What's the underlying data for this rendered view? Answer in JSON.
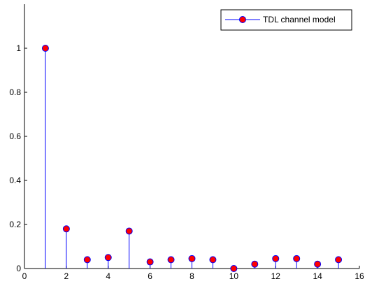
{
  "chart_data": {
    "type": "stem",
    "series": [
      {
        "name": "TDL channel model",
        "x": [
          1,
          2,
          3,
          4,
          5,
          6,
          7,
          8,
          9,
          10,
          11,
          12,
          13,
          14,
          15
        ],
        "y": [
          1.0,
          0.18,
          0.04,
          0.05,
          0.17,
          0.03,
          0.04,
          0.045,
          0.04,
          0.0,
          0.02,
          0.045,
          0.045,
          0.02,
          0.04
        ],
        "line_color": "#0000ff",
        "marker_fill": "#ff0000",
        "marker_edge": "#0000ff"
      }
    ],
    "xlim": [
      0,
      16
    ],
    "ylim": [
      0,
      1.2
    ],
    "xticks": [
      "0",
      "2",
      "4",
      "6",
      "8",
      "10",
      "12",
      "14",
      "16"
    ],
    "yticks": [
      "0",
      "0.2",
      "0.4",
      "0.6",
      "0.8",
      "1"
    ],
    "legend_position": "top-right",
    "grid": false
  }
}
